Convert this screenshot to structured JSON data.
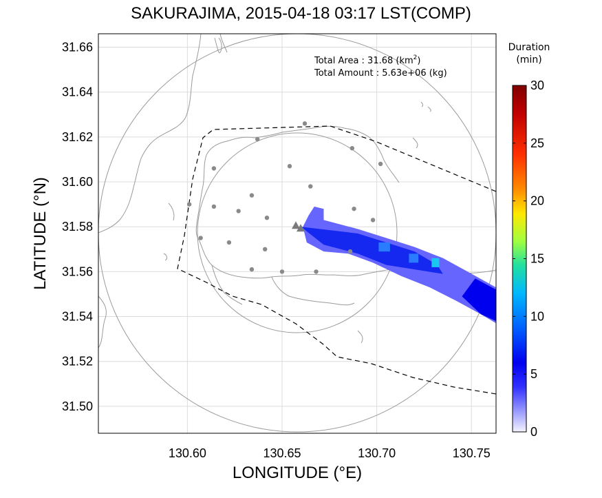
{
  "title": "SAKURAJIMA, 2015-04-18 03:17 LST(COMP)",
  "stats": {
    "area_label": "Total Area   : 31.68 (km",
    "area_sup": "2",
    "area_close": ")",
    "amount_label": "Total Amount : 5.63e+06 (kg)"
  },
  "colorbar": {
    "title_line1": "Duration",
    "title_line2": "(min)",
    "ticks": [
      "30",
      "25",
      "20",
      "15",
      "10",
      "5",
      "0"
    ],
    "colors": [
      "#800000",
      "#d01010",
      "#ff4000",
      "#ff9000",
      "#ffe000",
      "#b0ff40",
      "#30e090",
      "#00d8f0",
      "#0090ff",
      "#0030ff",
      "#0000e0",
      "#f2f2ff"
    ]
  },
  "chart_data": {
    "type": "map",
    "xlabel": "LONGITUDE (°E)",
    "ylabel": "LATITUDE (°N)",
    "xlim": [
      130.553,
      130.763
    ],
    "ylim": [
      31.488,
      31.666
    ],
    "xticks": [
      "130.60",
      "130.65",
      "130.70",
      "130.75"
    ],
    "yticks": [
      "31.66",
      "31.64",
      "31.62",
      "31.60",
      "31.58",
      "31.56",
      "31.54",
      "31.52",
      "31.50"
    ],
    "grid": true,
    "vent": {
      "lon": 130.658,
      "lat": 31.58
    },
    "stations": [
      [
        130.662,
        31.626
      ],
      [
        130.637,
        31.619
      ],
      [
        130.654,
        31.607
      ],
      [
        130.614,
        31.606
      ],
      [
        130.687,
        31.615
      ],
      [
        130.702,
        31.608
      ],
      [
        130.665,
        31.598
      ],
      [
        130.601,
        31.59
      ],
      [
        130.614,
        31.589
      ],
      [
        130.634,
        31.594
      ],
      [
        130.627,
        31.587
      ],
      [
        130.642,
        31.584
      ],
      [
        130.688,
        31.588
      ],
      [
        130.698,
        31.583
      ],
      [
        130.607,
        31.575
      ],
      [
        130.622,
        31.573
      ],
      [
        130.641,
        31.57
      ],
      [
        130.686,
        31.569
      ],
      [
        130.634,
        31.561
      ],
      [
        130.65,
        31.56
      ],
      [
        130.668,
        31.56
      ]
    ],
    "plume": [
      {
        "duration": 3,
        "points": [
          [
            130.667,
            31.589
          ],
          [
            130.672,
            31.588
          ],
          [
            130.672,
            31.583
          ],
          [
            130.69,
            31.579
          ],
          [
            130.705,
            31.575
          ],
          [
            130.72,
            31.571
          ],
          [
            130.735,
            31.566
          ],
          [
            130.748,
            31.56
          ],
          [
            130.763,
            31.553
          ],
          [
            130.763,
            31.537
          ],
          [
            130.755,
            31.541
          ],
          [
            130.742,
            31.547
          ],
          [
            130.728,
            31.553
          ],
          [
            130.713,
            31.558
          ],
          [
            130.698,
            31.564
          ],
          [
            130.685,
            31.568
          ],
          [
            130.672,
            31.569
          ],
          [
            130.663,
            31.573
          ],
          [
            130.661,
            31.58
          ],
          [
            130.664,
            31.585
          ]
        ]
      },
      {
        "duration": 5,
        "points": [
          [
            130.66,
            31.58
          ],
          [
            130.69,
            31.577
          ],
          [
            130.705,
            31.573
          ],
          [
            130.72,
            31.569
          ],
          [
            130.732,
            31.563
          ],
          [
            130.735,
            31.559
          ],
          [
            130.72,
            31.561
          ],
          [
            130.705,
            31.563
          ],
          [
            130.69,
            31.568
          ],
          [
            130.672,
            31.572
          ]
        ]
      },
      {
        "duration": 7,
        "points": [
          [
            130.752,
            31.557
          ],
          [
            130.763,
            31.552
          ],
          [
            130.763,
            31.538
          ],
          [
            130.755,
            31.541
          ],
          [
            130.745,
            31.549
          ]
        ]
      },
      {
        "duration": 9,
        "points": [
          [
            130.701,
            31.573
          ],
          [
            130.707,
            31.573
          ],
          [
            130.707,
            31.569
          ],
          [
            130.701,
            31.569
          ]
        ]
      },
      {
        "duration": 9,
        "points": [
          [
            130.717,
            31.568
          ],
          [
            130.722,
            31.568
          ],
          [
            130.722,
            31.564
          ],
          [
            130.717,
            31.564
          ]
        ]
      },
      {
        "duration": 10,
        "points": [
          [
            130.729,
            31.566
          ],
          [
            130.733,
            31.566
          ],
          [
            130.733,
            31.562
          ],
          [
            130.729,
            31.562
          ]
        ]
      }
    ]
  }
}
